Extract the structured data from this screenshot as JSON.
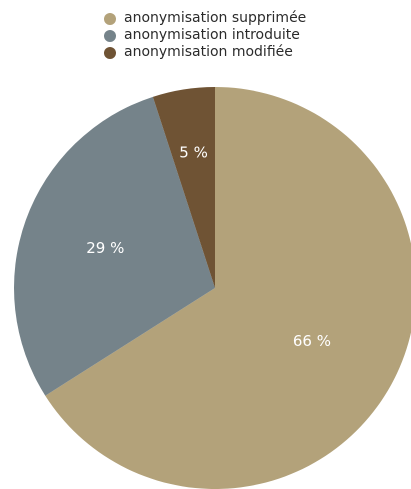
{
  "chart_data": {
    "type": "pie",
    "title": "",
    "legend_position": "top",
    "slices": [
      {
        "label": "anonymisation supprimée",
        "value": 66,
        "value_label": "66 %",
        "color": "#b3a27a"
      },
      {
        "label": "anonymisation introduite",
        "value": 29,
        "value_label": "29 %",
        "color": "#75838a"
      },
      {
        "label": "anonymisation modifiée",
        "value": 5,
        "value_label": "5 %",
        "color": "#6f5334"
      }
    ]
  }
}
